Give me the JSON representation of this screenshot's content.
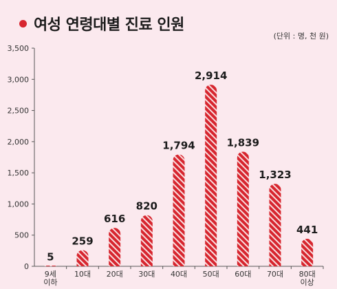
{
  "header": {
    "title": "여성 연령대별 진료 인원",
    "unit": "(단위 : 명, 천 원)"
  },
  "colors": {
    "bar": "#d7262f",
    "stripe": "#ffffff",
    "accent_dot": "#d7262f",
    "background": "#fbe9ee"
  },
  "chart_data": {
    "type": "bar",
    "title": "여성 연령대별 진료 인원",
    "categories": [
      [
        "9세",
        "이하"
      ],
      [
        "10대"
      ],
      [
        "20대"
      ],
      [
        "30대"
      ],
      [
        "40대"
      ],
      [
        "50대"
      ],
      [
        "60대"
      ],
      [
        "70대"
      ],
      [
        "80대",
        "이상"
      ]
    ],
    "values": [
      5,
      259,
      616,
      820,
      1794,
      2914,
      1839,
      1323,
      441
    ],
    "value_labels": [
      "5",
      "259",
      "616",
      "820",
      "1,794",
      "2,914",
      "1,839",
      "1,323",
      "441"
    ],
    "ylim": [
      0,
      3500
    ],
    "yticks": [
      0,
      500,
      1000,
      1500,
      2000,
      2500,
      3000,
      3500
    ],
    "ytick_labels": [
      "0",
      "500",
      "1,000",
      "1,500",
      "2,000",
      "2,500",
      "3,000",
      "3,500"
    ],
    "grid": false,
    "legend": "none"
  }
}
